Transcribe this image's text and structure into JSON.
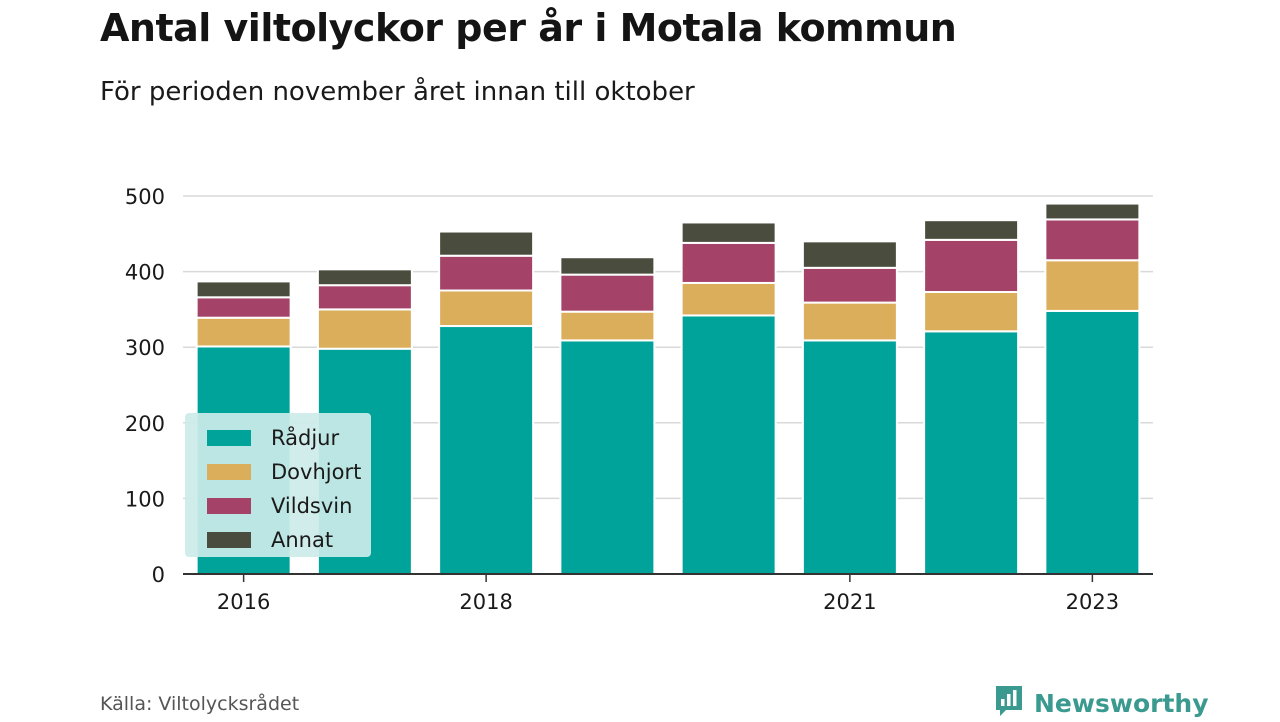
{
  "header": {
    "title": "Antal viltolyckor per år i Motala kommun",
    "subtitle": "För perioden november året innan till oktober"
  },
  "footer": {
    "source": "Källa: Viltolycksrådet",
    "brand": "Newsworthy",
    "brand_icon": "newsworthy-logo-icon"
  },
  "colors": {
    "radjur": "#00a39a",
    "dovhjort": "#dbae5c",
    "vildsvin": "#a54268",
    "annat": "#4a4c3e",
    "grid": "#d9d9d9",
    "axis": "#333333"
  },
  "chart_data": {
    "type": "bar",
    "stacked": true,
    "categories": [
      "2016",
      "2017",
      "2018",
      "2019",
      "2020",
      "2021",
      "2022",
      "2023"
    ],
    "x_tick_labels": [
      "2016",
      "",
      "2018",
      "",
      "",
      "2021",
      "",
      "2023"
    ],
    "y_ticks": [
      0,
      100,
      200,
      300,
      400,
      500
    ],
    "ylim": [
      0,
      500
    ],
    "grid": true,
    "legend_position": "bottom-left",
    "series": [
      {
        "name": "Rådjur",
        "color": "#00a39a",
        "values": [
          301,
          298,
          328,
          309,
          342,
          309,
          321,
          348
        ]
      },
      {
        "name": "Dovhjort",
        "color": "#dbae5c",
        "values": [
          38,
          52,
          47,
          38,
          43,
          50,
          52,
          67
        ]
      },
      {
        "name": "Vildsvin",
        "color": "#a54268",
        "values": [
          27,
          32,
          46,
          49,
          53,
          46,
          69,
          54
        ]
      },
      {
        "name": "Annat",
        "color": "#4a4c3e",
        "values": [
          21,
          21,
          32,
          23,
          27,
          35,
          26,
          21
        ]
      }
    ]
  }
}
